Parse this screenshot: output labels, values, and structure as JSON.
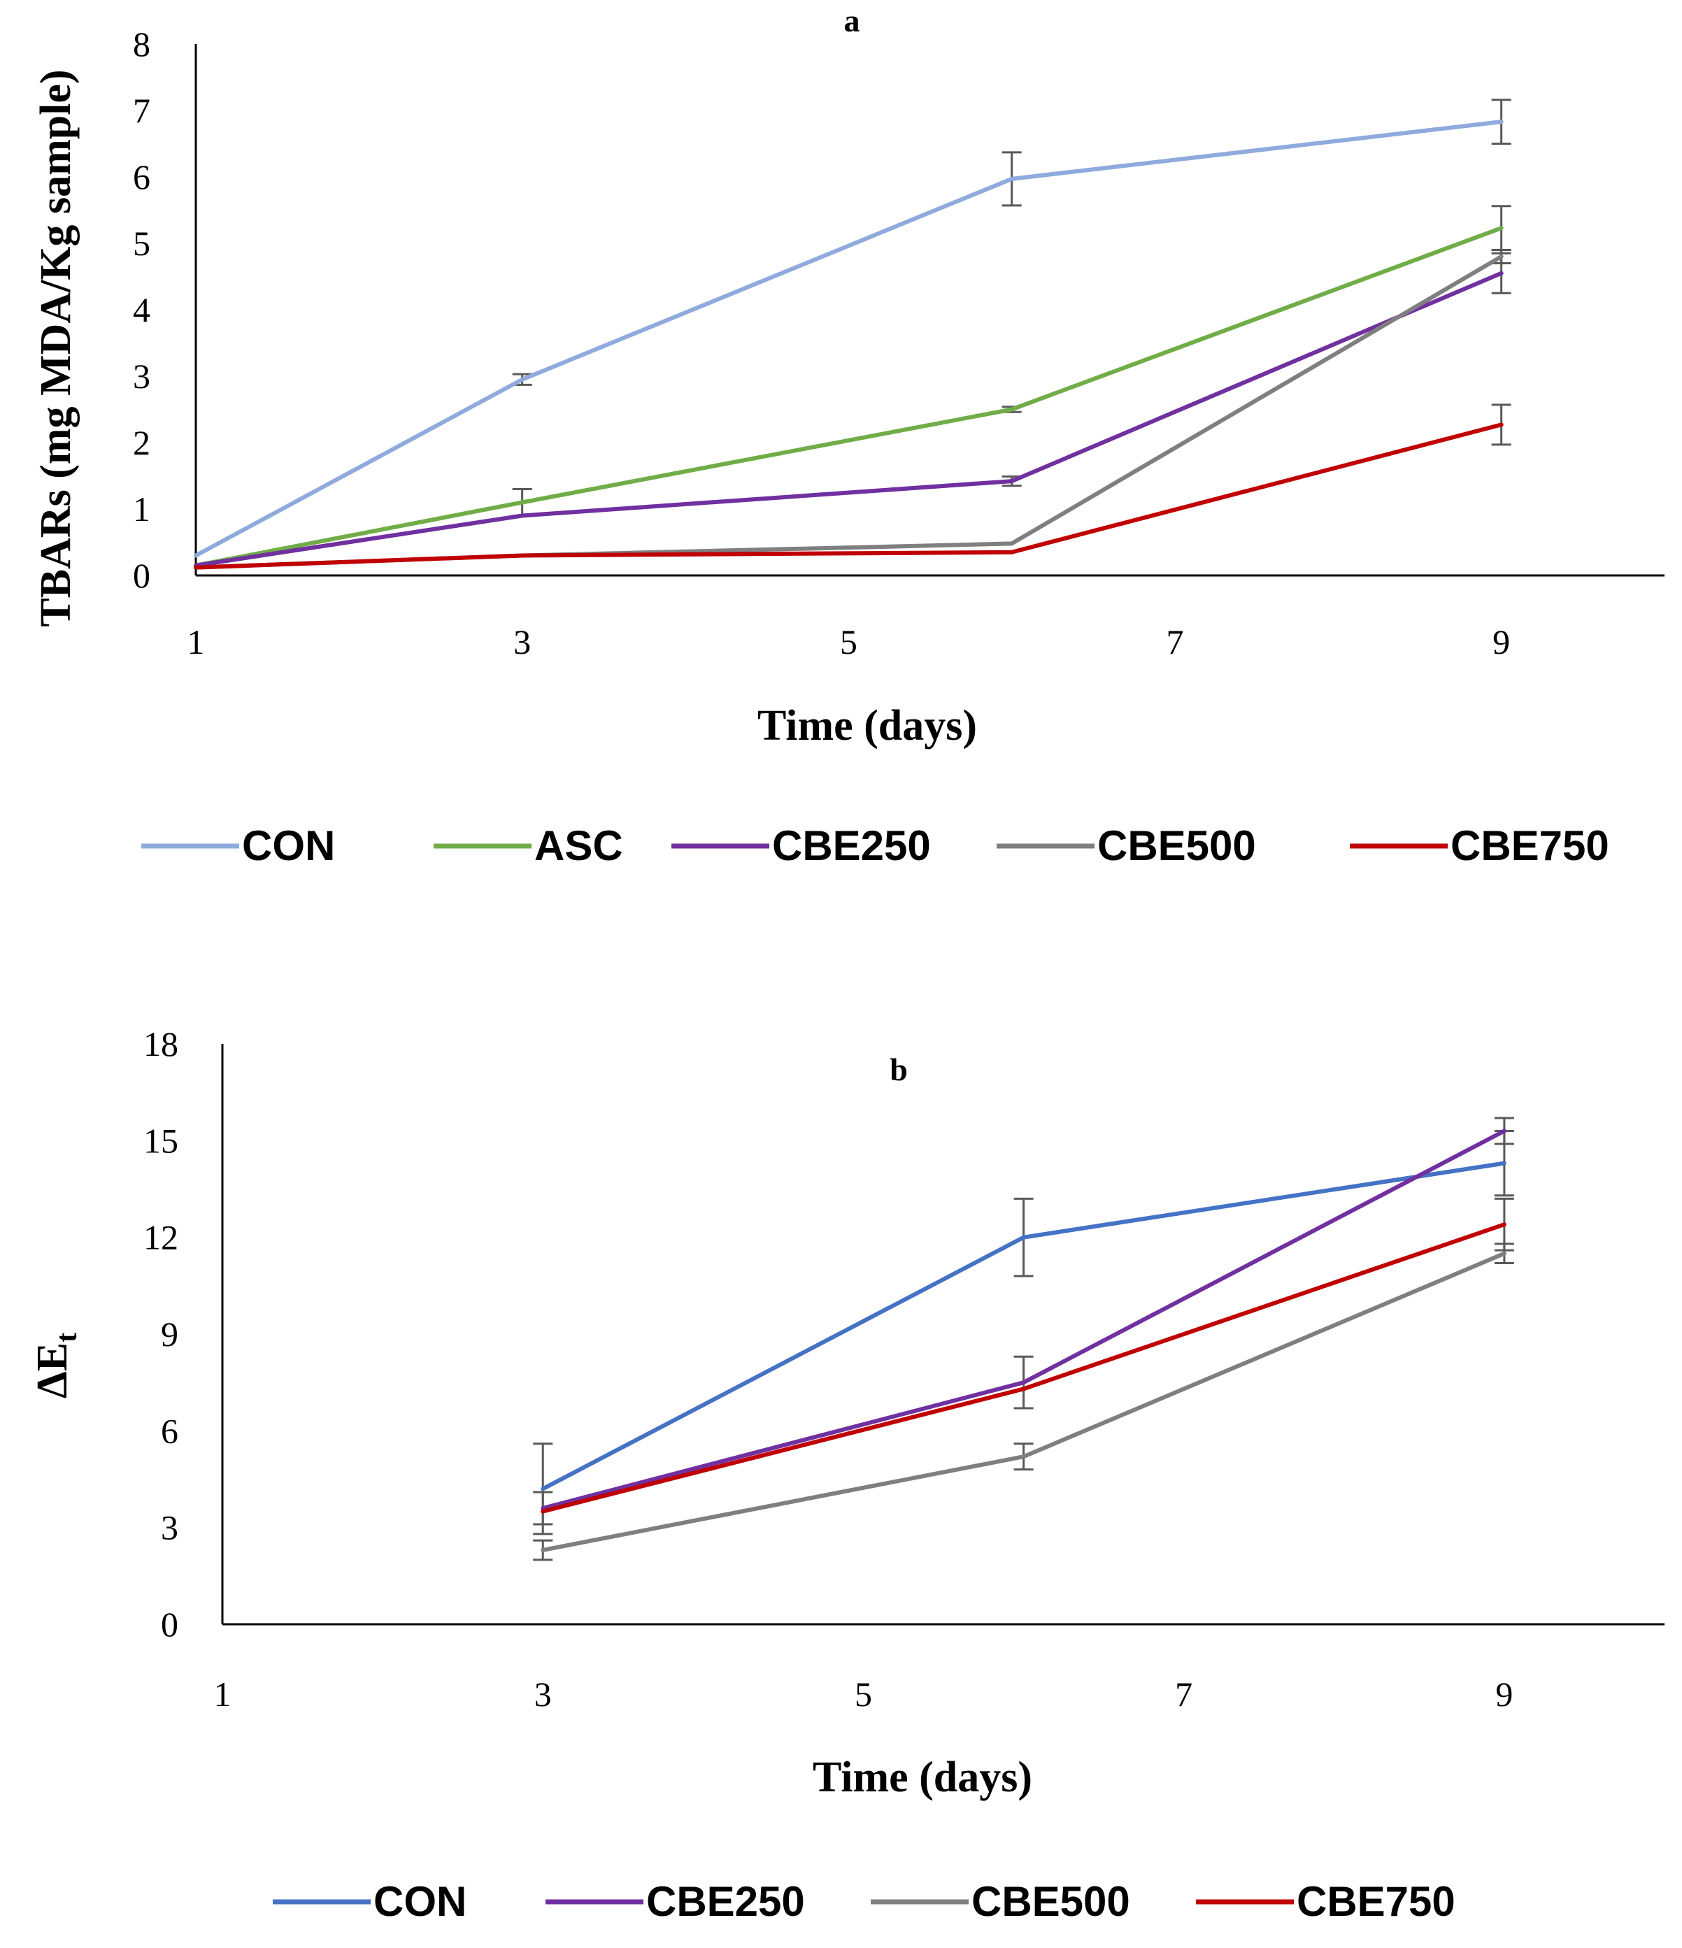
{
  "chart_data": [
    {
      "type": "line",
      "panel_label": "a",
      "xlabel": "Time (days)",
      "ylabel": "TBARs (mg MDA/Kg sample)",
      "xlim": [
        1,
        10
      ],
      "ylim": [
        0,
        8
      ],
      "xticks": [
        "1",
        "3",
        "5",
        "7",
        "9"
      ],
      "yticks": [
        "0",
        "1",
        "2",
        "3",
        "4",
        "5",
        "6",
        "7",
        "8"
      ],
      "x": [
        1,
        3,
        6,
        9
      ],
      "series": [
        {
          "name": "CON",
          "color": "#8FAADC",
          "values": [
            0.3,
            2.95,
            5.97,
            6.83
          ],
          "errors": [
            0,
            0.08,
            0.4,
            0.33
          ]
        },
        {
          "name": "ASC",
          "color": "#70AD47",
          "values": [
            0.15,
            1.1,
            2.5,
            5.23
          ],
          "errors": [
            0,
            0.2,
            0.04,
            0.33
          ]
        },
        {
          "name": "CBE250",
          "color": "#7030A0",
          "values": [
            0.15,
            0.9,
            1.42,
            4.55
          ],
          "errors": [
            0,
            0,
            0.07,
            0.3
          ]
        },
        {
          "name": "CBE500",
          "color": "#7F7F7F",
          "values": [
            0.12,
            0.3,
            0.48,
            4.8
          ],
          "errors": [
            0,
            0,
            0,
            0.1
          ]
        },
        {
          "name": "CBE750",
          "color": "#C00000",
          "values": [
            0.12,
            0.3,
            0.35,
            2.27
          ],
          "errors": [
            0,
            0,
            0,
            0.3
          ]
        }
      ]
    },
    {
      "type": "line",
      "panel_label": "b",
      "xlabel": "Time (days)",
      "ylabel": "ΔE",
      "ylabel_sub": "t",
      "xlim": [
        1,
        10
      ],
      "ylim": [
        0,
        18
      ],
      "xticks": [
        "1",
        "3",
        "5",
        "7",
        "9"
      ],
      "yticks": [
        "0",
        "3",
        "6",
        "9",
        "12",
        "15",
        "18"
      ],
      "x": [
        3,
        6,
        9
      ],
      "series": [
        {
          "name": "CON",
          "color": "#4472C4",
          "values": [
            4.2,
            12.0,
            14.3
          ],
          "errors": [
            1.4,
            1.2,
            1.0
          ]
        },
        {
          "name": "CBE250",
          "color": "#7030A0",
          "values": [
            3.6,
            7.5,
            15.3
          ],
          "errors": [
            0.5,
            0.8,
            0.4
          ]
        },
        {
          "name": "CBE500",
          "color": "#7F7F7F",
          "values": [
            2.3,
            5.2,
            11.5
          ],
          "errors": [
            0.3,
            0.4,
            0.3
          ]
        },
        {
          "name": "CBE750",
          "color": "#C00000",
          "values": [
            3.5,
            7.3,
            12.4
          ],
          "errors": [
            0,
            0,
            0.8
          ]
        }
      ]
    }
  ]
}
